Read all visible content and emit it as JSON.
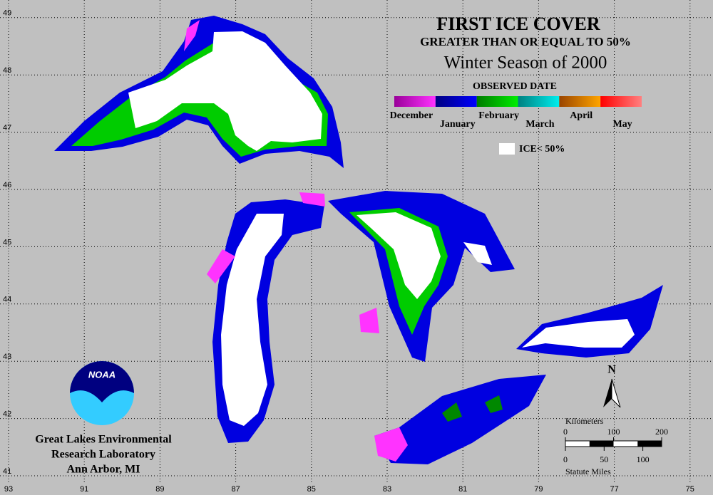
{
  "header": {
    "title": "FIRST ICE COVER",
    "subtitle": "GREATER THAN OR EQUAL TO 50%",
    "season": "Winter Season of 2000"
  },
  "legend": {
    "title": "OBSERVED DATE",
    "items": [
      {
        "label": "December",
        "colors": [
          "#990099",
          "#ff33ff"
        ]
      },
      {
        "label": "January",
        "colors": [
          "#000080",
          "#0000ff"
        ]
      },
      {
        "label": "February",
        "colors": [
          "#007a00",
          "#00ee00"
        ]
      },
      {
        "label": "March",
        "colors": [
          "#008080",
          "#00eeee"
        ]
      },
      {
        "label": "April",
        "colors": [
          "#994400",
          "#ffa500"
        ]
      },
      {
        "label": "May",
        "colors": [
          "#ff0000",
          "#ff8080"
        ]
      }
    ],
    "white_label": "ICE< 50%"
  },
  "map": {
    "lat_ticks": [
      41,
      42,
      43,
      44,
      45,
      46,
      47,
      48,
      49
    ],
    "lon_ticks": [
      93,
      91,
      89,
      87,
      85,
      83,
      81,
      79,
      77,
      75
    ],
    "grid": true
  },
  "north": "N",
  "scale": {
    "km_title": "Kilometers",
    "km_ticks": [
      0,
      100,
      200
    ],
    "mi_ticks": [
      0,
      50,
      100
    ],
    "mi_title": "Statute Miles"
  },
  "logo": "NOAA",
  "credit": [
    "Great Lakes Environmental",
    "Research Laboratory",
    "Ann Arbor, MI"
  ]
}
